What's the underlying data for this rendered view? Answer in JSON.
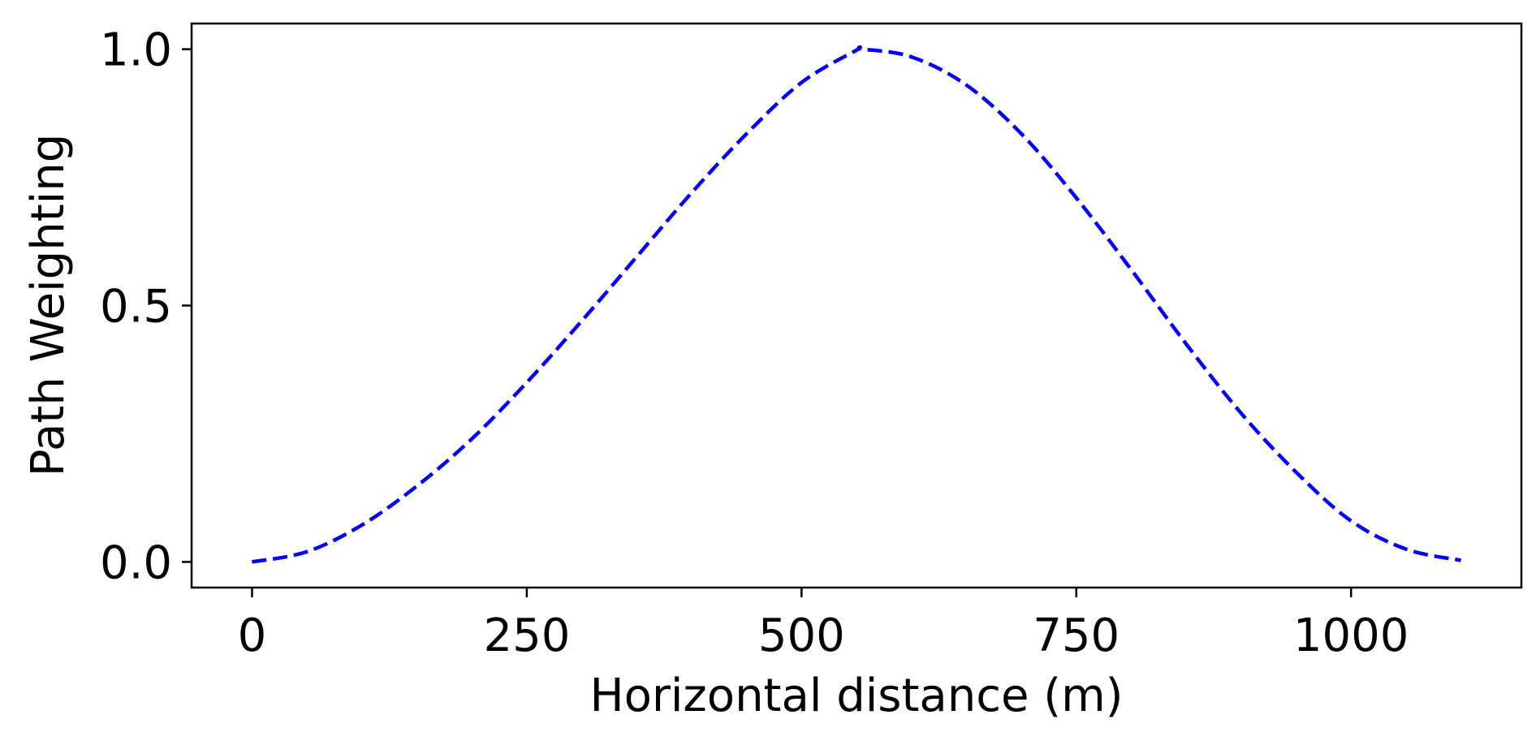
{
  "chart_data": {
    "type": "line",
    "title": "",
    "xlabel": "Horizontal distance (m)",
    "ylabel": "Path Weighting",
    "xlim": [
      -55,
      1155
    ],
    "ylim": [
      -0.05,
      1.05
    ],
    "xticks": [
      0,
      250,
      500,
      750,
      1000
    ],
    "xtick_labels": [
      "0",
      "250",
      "500",
      "750",
      "1000"
    ],
    "yticks": [
      0.0,
      0.5,
      1.0
    ],
    "ytick_labels": [
      "0.0",
      "0.5",
      "1.0"
    ],
    "grid": false,
    "legend": "none",
    "series": [
      {
        "color": "#0000ff",
        "line_style": "dashed",
        "x": [
          0,
          50,
          100,
          150,
          200,
          250,
          300,
          350,
          400,
          450,
          500,
          550,
          555,
          600,
          650,
          700,
          750,
          800,
          850,
          900,
          950,
          1000,
          1050,
          1100
        ],
        "y": [
          0.0,
          0.02,
          0.072,
          0.148,
          0.24,
          0.35,
          0.47,
          0.595,
          0.72,
          0.835,
          0.935,
          0.998,
          1.0,
          0.985,
          0.93,
          0.835,
          0.71,
          0.57,
          0.425,
          0.29,
          0.175,
          0.08,
          0.025,
          0.003
        ]
      }
    ]
  }
}
